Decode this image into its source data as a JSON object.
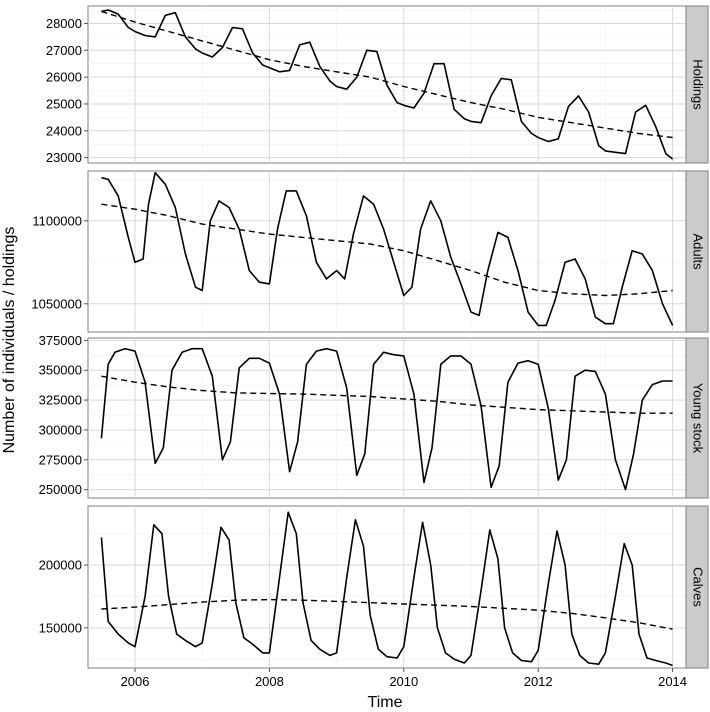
{
  "chart_data": {
    "type": "line",
    "xlabel": "Time",
    "ylabel": "Number of individuals / holdings",
    "xlim": [
      2005.3,
      2014.2
    ],
    "x_ticks": [
      2006,
      2008,
      2010,
      2012,
      2014
    ],
    "x_tick_labels": [
      "2006",
      "2008",
      "2010",
      "2012",
      "2014"
    ],
    "grid": true,
    "series_styles": {
      "observed": "solid",
      "trend": "dashed"
    },
    "panels": [
      {
        "name": "Holdings",
        "ylim": [
          22800,
          28650
        ],
        "y_ticks": [
          23000,
          24000,
          25000,
          26000,
          27000,
          28000
        ],
        "y_tick_labels": [
          "23000",
          "24000",
          "25000",
          "26000",
          "27000",
          "28000"
        ],
        "observed": {
          "x": [
            2005.5,
            2005.6,
            2005.75,
            2005.9,
            2006.0,
            2006.15,
            2006.3,
            2006.45,
            2006.6,
            2006.75,
            2006.9,
            2007.0,
            2007.15,
            2007.3,
            2007.45,
            2007.6,
            2007.75,
            2007.9,
            2008.0,
            2008.15,
            2008.3,
            2008.45,
            2008.6,
            2008.75,
            2008.9,
            2009.0,
            2009.15,
            2009.3,
            2009.45,
            2009.6,
            2009.75,
            2009.9,
            2010.0,
            2010.15,
            2010.3,
            2010.45,
            2010.6,
            2010.75,
            2010.9,
            2011.0,
            2011.15,
            2011.3,
            2011.45,
            2011.6,
            2011.75,
            2011.9,
            2012.0,
            2012.15,
            2012.3,
            2012.45,
            2012.6,
            2012.75,
            2012.9,
            2013.0,
            2013.15,
            2013.3,
            2013.45,
            2013.6,
            2013.75,
            2013.9,
            2014.0
          ],
          "y": [
            28450,
            28500,
            28350,
            27850,
            27700,
            27550,
            27500,
            28300,
            28400,
            27500,
            27050,
            26900,
            26750,
            27100,
            27850,
            27800,
            26900,
            26450,
            26350,
            26200,
            26250,
            27200,
            27300,
            26400,
            25850,
            25650,
            25550,
            26000,
            27000,
            26950,
            25700,
            25050,
            24950,
            24850,
            25400,
            26500,
            26500,
            24800,
            24450,
            24350,
            24300,
            25300,
            25950,
            25900,
            24350,
            23900,
            23750,
            23600,
            23700,
            24900,
            25300,
            24700,
            23450,
            23250,
            23200,
            23150,
            24700,
            24950,
            24150,
            23150,
            22950
          ]
        },
        "trend": {
          "x": [
            2005.5,
            2006.0,
            2006.5,
            2007.0,
            2007.5,
            2008.0,
            2008.5,
            2009.0,
            2009.5,
            2010.0,
            2010.5,
            2011.0,
            2011.5,
            2012.0,
            2012.5,
            2013.0,
            2013.5,
            2014.0
          ],
          "y": [
            28450,
            28050,
            27700,
            27350,
            27000,
            26650,
            26400,
            26200,
            26000,
            25650,
            25350,
            25050,
            24800,
            24500,
            24300,
            24100,
            23900,
            23750
          ]
        }
      },
      {
        "name": "Adults",
        "ylim": [
          1033000,
          1130000
        ],
        "y_ticks": [
          1050000,
          1100000
        ],
        "y_tick_labels": [
          "1050000",
          "1100000"
        ],
        "observed": {
          "x": [
            2005.5,
            2005.6,
            2005.75,
            2005.9,
            2006.0,
            2006.12,
            2006.2,
            2006.3,
            2006.45,
            2006.6,
            2006.75,
            2006.9,
            2007.0,
            2007.12,
            2007.25,
            2007.4,
            2007.55,
            2007.7,
            2007.85,
            2008.0,
            2008.12,
            2008.25,
            2008.4,
            2008.55,
            2008.7,
            2008.85,
            2009.0,
            2009.12,
            2009.25,
            2009.4,
            2009.55,
            2009.7,
            2009.85,
            2010.0,
            2010.12,
            2010.25,
            2010.4,
            2010.55,
            2010.7,
            2010.85,
            2011.0,
            2011.12,
            2011.25,
            2011.4,
            2011.55,
            2011.7,
            2011.85,
            2012.0,
            2012.12,
            2012.25,
            2012.4,
            2012.55,
            2012.7,
            2012.85,
            2013.0,
            2013.12,
            2013.25,
            2013.4,
            2013.55,
            2013.7,
            2013.85,
            2014.0
          ],
          "y": [
            1126000,
            1125000,
            1115000,
            1090000,
            1075000,
            1077000,
            1110000,
            1129000,
            1122000,
            1108000,
            1080000,
            1060000,
            1058000,
            1100000,
            1112000,
            1108000,
            1095000,
            1070000,
            1063000,
            1062000,
            1095000,
            1118000,
            1118000,
            1103000,
            1075000,
            1065000,
            1070000,
            1065000,
            1092000,
            1115000,
            1110000,
            1095000,
            1075000,
            1055000,
            1060000,
            1095000,
            1112000,
            1100000,
            1078000,
            1062000,
            1045000,
            1043000,
            1070000,
            1093000,
            1090000,
            1070000,
            1045000,
            1037000,
            1037000,
            1052000,
            1075000,
            1077000,
            1065000,
            1042000,
            1038000,
            1038000,
            1060000,
            1082000,
            1080000,
            1070000,
            1050000,
            1037000
          ]
        },
        "trend": {
          "x": [
            2005.5,
            2006.0,
            2006.5,
            2007.0,
            2007.5,
            2008.0,
            2008.5,
            2009.0,
            2009.5,
            2010.0,
            2010.5,
            2011.0,
            2011.5,
            2012.0,
            2012.5,
            2013.0,
            2013.5,
            2014.0
          ],
          "y": [
            1110000,
            1107000,
            1103000,
            1098000,
            1095000,
            1092000,
            1090000,
            1088000,
            1086000,
            1082000,
            1076000,
            1070000,
            1063000,
            1058000,
            1056000,
            1055000,
            1056000,
            1058000
          ]
        }
      },
      {
        "name": "Young stock",
        "ylim": [
          243000,
          377000
        ],
        "y_ticks": [
          250000,
          275000,
          300000,
          325000,
          350000,
          375000
        ],
        "y_tick_labels": [
          "250000",
          "275000",
          "300000",
          "325000",
          "350000",
          "375000"
        ],
        "observed": {
          "x": [
            2005.5,
            2005.6,
            2005.7,
            2005.85,
            2006.0,
            2006.15,
            2006.3,
            2006.42,
            2006.55,
            2006.7,
            2006.85,
            2007.0,
            2007.15,
            2007.3,
            2007.42,
            2007.55,
            2007.7,
            2007.85,
            2008.0,
            2008.15,
            2008.3,
            2008.42,
            2008.55,
            2008.7,
            2008.85,
            2009.0,
            2009.15,
            2009.3,
            2009.42,
            2009.55,
            2009.7,
            2009.85,
            2010.0,
            2010.15,
            2010.3,
            2010.42,
            2010.55,
            2010.7,
            2010.85,
            2011.0,
            2011.15,
            2011.3,
            2011.42,
            2011.55,
            2011.7,
            2011.85,
            2012.0,
            2012.15,
            2012.3,
            2012.42,
            2012.55,
            2012.7,
            2012.85,
            2013.0,
            2013.15,
            2013.3,
            2013.42,
            2013.55,
            2013.7,
            2013.85,
            2014.0
          ],
          "y": [
            293000,
            355000,
            365000,
            368000,
            366000,
            340000,
            272000,
            285000,
            350000,
            365000,
            368000,
            368000,
            345000,
            275000,
            290000,
            352000,
            360000,
            360000,
            356000,
            330000,
            265000,
            290000,
            355000,
            366000,
            368000,
            366000,
            335000,
            262000,
            280000,
            355000,
            365000,
            363000,
            362000,
            330000,
            256000,
            285000,
            355000,
            362000,
            362000,
            355000,
            320000,
            252000,
            270000,
            340000,
            356000,
            358000,
            355000,
            318000,
            258000,
            275000,
            345000,
            350000,
            349000,
            330000,
            275000,
            250000,
            280000,
            325000,
            338000,
            341000,
            341000
          ]
        },
        "trend": {
          "x": [
            2005.5,
            2006.0,
            2006.5,
            2007.0,
            2007.5,
            2008.0,
            2008.5,
            2009.0,
            2009.5,
            2010.0,
            2010.5,
            2011.0,
            2011.5,
            2012.0,
            2012.5,
            2013.0,
            2013.5,
            2014.0
          ],
          "y": [
            345000,
            340000,
            336000,
            333000,
            331000,
            330500,
            330000,
            329000,
            328000,
            326000,
            324000,
            321000,
            319000,
            317000,
            316000,
            315000,
            314000,
            314000
          ]
        }
      },
      {
        "name": "Calves",
        "ylim": [
          118000,
          247000
        ],
        "y_ticks": [
          150000,
          200000
        ],
        "y_tick_labels": [
          "150000",
          "200000"
        ],
        "observed": {
          "x": [
            2005.5,
            2005.6,
            2005.75,
            2005.9,
            2006.0,
            2006.15,
            2006.28,
            2006.4,
            2006.5,
            2006.62,
            2006.75,
            2006.9,
            2007.0,
            2007.15,
            2007.28,
            2007.4,
            2007.5,
            2007.62,
            2007.75,
            2007.9,
            2008.0,
            2008.15,
            2008.28,
            2008.4,
            2008.5,
            2008.62,
            2008.75,
            2008.9,
            2009.0,
            2009.15,
            2009.28,
            2009.4,
            2009.5,
            2009.62,
            2009.75,
            2009.9,
            2010.0,
            2010.15,
            2010.28,
            2010.4,
            2010.5,
            2010.62,
            2010.75,
            2010.9,
            2011.0,
            2011.15,
            2011.28,
            2011.4,
            2011.5,
            2011.62,
            2011.75,
            2011.9,
            2012.0,
            2012.15,
            2012.28,
            2012.4,
            2012.5,
            2012.62,
            2012.75,
            2012.9,
            2013.0,
            2013.15,
            2013.28,
            2013.4,
            2013.5,
            2013.62,
            2013.75,
            2013.9,
            2014.0
          ],
          "y": [
            222000,
            155000,
            145000,
            138000,
            135000,
            175000,
            232000,
            225000,
            175000,
            145000,
            140000,
            135000,
            138000,
            185000,
            230000,
            220000,
            170000,
            142000,
            137000,
            130000,
            130000,
            190000,
            242000,
            225000,
            170000,
            140000,
            133000,
            128000,
            130000,
            190000,
            236000,
            215000,
            160000,
            133000,
            127000,
            126000,
            135000,
            190000,
            234000,
            200000,
            150000,
            130000,
            125000,
            122000,
            128000,
            180000,
            228000,
            205000,
            150000,
            130000,
            124000,
            123000,
            132000,
            185000,
            227000,
            200000,
            145000,
            128000,
            122000,
            121000,
            130000,
            175000,
            217000,
            200000,
            145000,
            126000,
            124000,
            122000,
            120000
          ]
        },
        "trend": {
          "x": [
            2005.5,
            2006.0,
            2006.5,
            2007.0,
            2007.5,
            2008.0,
            2008.5,
            2009.0,
            2009.5,
            2010.0,
            2010.5,
            2011.0,
            2011.5,
            2012.0,
            2012.5,
            2013.0,
            2013.5,
            2014.0
          ],
          "y": [
            165000,
            166500,
            168500,
            170500,
            172000,
            172500,
            172000,
            171000,
            170000,
            169000,
            168000,
            167000,
            165500,
            164000,
            161500,
            158000,
            154000,
            149000
          ]
        }
      }
    ]
  }
}
